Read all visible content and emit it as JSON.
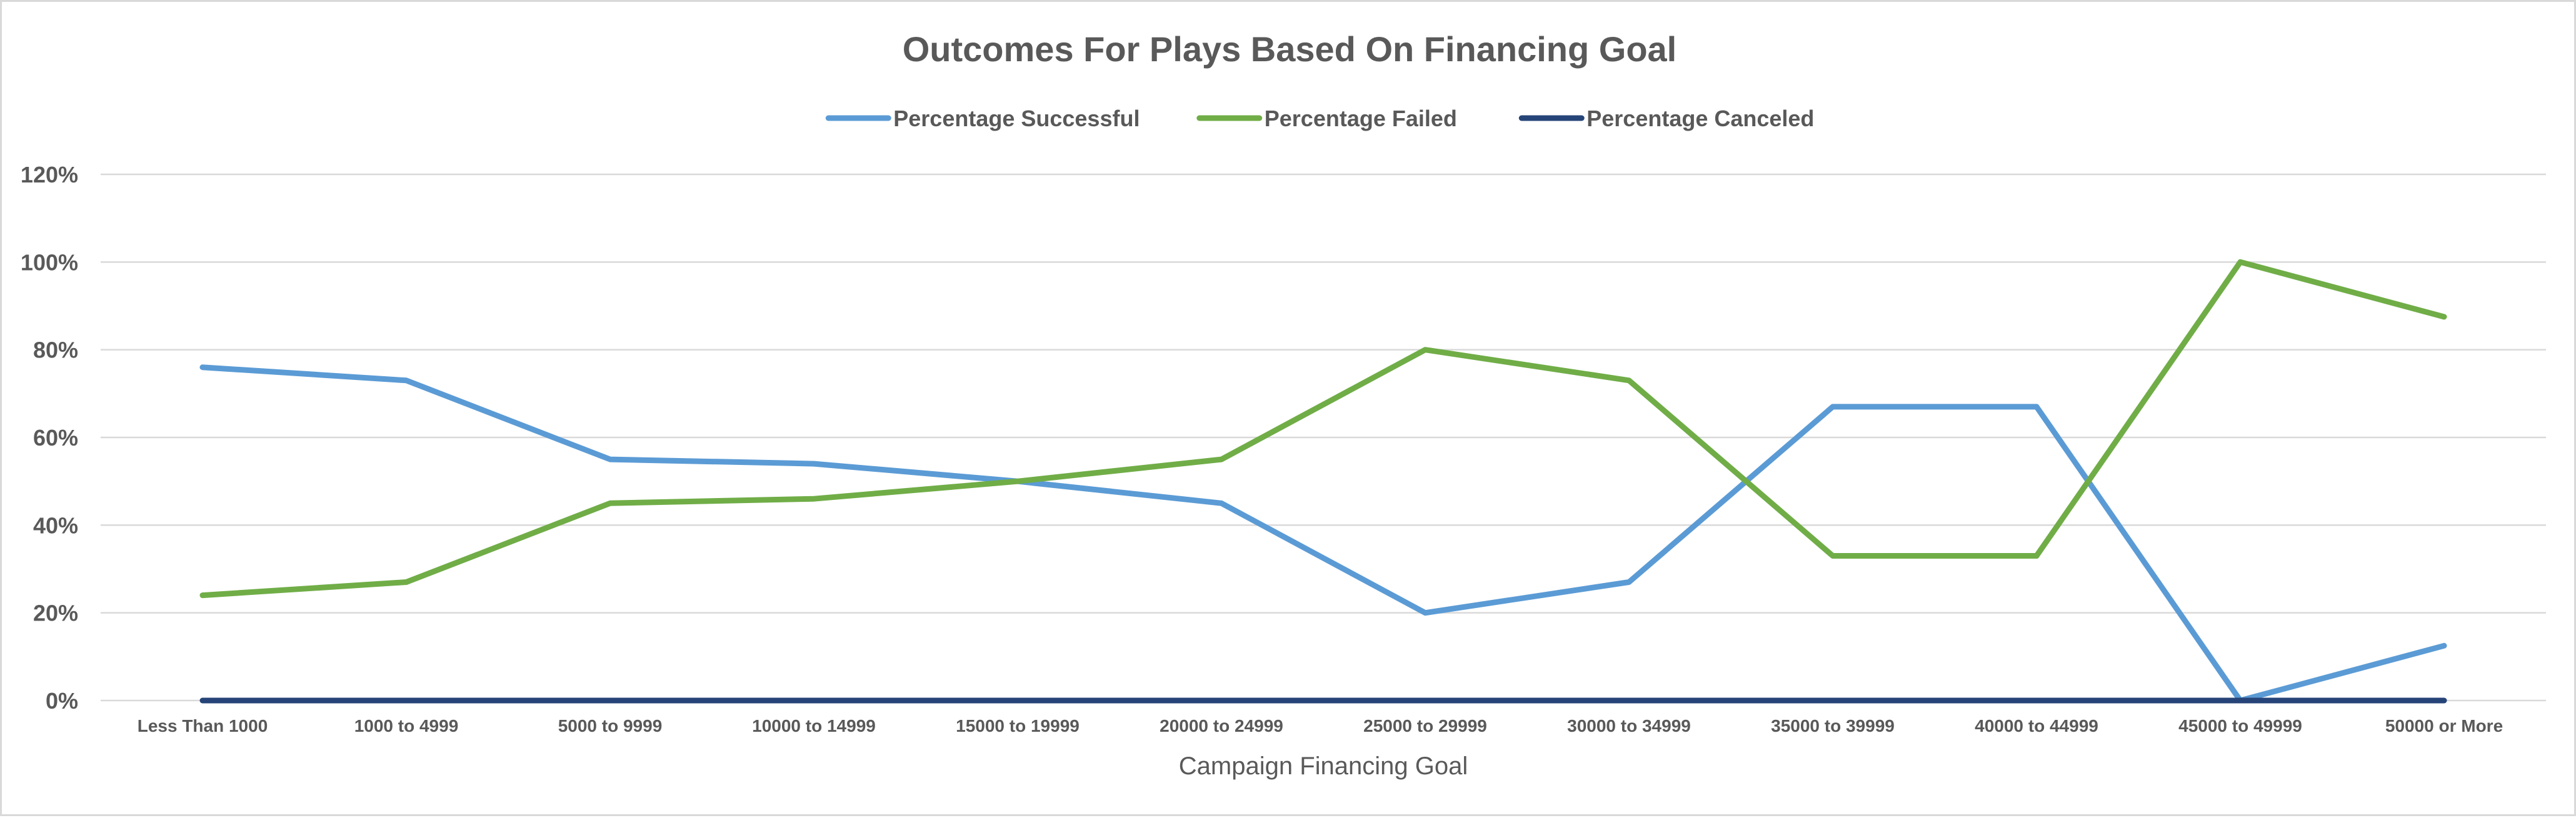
{
  "chart_data": {
    "type": "line",
    "title": "Outcomes For Plays Based On Financing Goal",
    "xlabel": "Campaign Financing Goal",
    "ylabel": "",
    "ylim": [
      0,
      1.2
    ],
    "yticks": [
      0,
      0.2,
      0.4,
      0.6,
      0.8,
      1.0,
      1.2
    ],
    "ytick_labels": [
      "0%",
      "20%",
      "40%",
      "60%",
      "80%",
      "100%",
      "120%"
    ],
    "grid": true,
    "legend_position": "top",
    "categories": [
      "Less Than 1000",
      "1000 to 4999",
      "5000 to 9999",
      "10000 to 14999",
      "15000 to 19999",
      "20000 to 24999",
      "25000 to 29999",
      "30000 to 34999",
      "35000 to 39999",
      "40000 to 44999",
      "45000 to 49999",
      "50000 or More"
    ],
    "series": [
      {
        "name": "Percentage Successful",
        "color": "#5b9bd5",
        "values": [
          0.76,
          0.73,
          0.55,
          0.54,
          0.5,
          0.45,
          0.2,
          0.27,
          0.67,
          0.67,
          0.0,
          0.125
        ]
      },
      {
        "name": "Percentage Failed",
        "color": "#70ad47",
        "values": [
          0.24,
          0.27,
          0.45,
          0.46,
          0.5,
          0.55,
          0.8,
          0.73,
          0.33,
          0.33,
          1.0,
          0.875
        ]
      },
      {
        "name": "Percentage Canceled",
        "color": "#264478",
        "values": [
          0,
          0,
          0,
          0,
          0,
          0,
          0,
          0,
          0,
          0,
          0,
          0
        ]
      }
    ]
  }
}
